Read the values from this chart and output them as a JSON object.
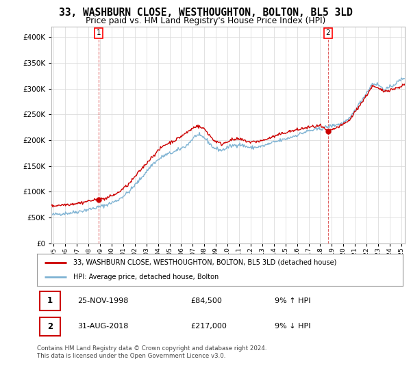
{
  "title": "33, WASHBURN CLOSE, WESTHOUGHTON, BOLTON, BL5 3LD",
  "subtitle": "Price paid vs. HM Land Registry's House Price Index (HPI)",
  "title_fontsize": 10.5,
  "subtitle_fontsize": 9,
  "ytick_values": [
    0,
    50000,
    100000,
    150000,
    200000,
    250000,
    300000,
    350000,
    400000
  ],
  "ylim": [
    0,
    420000
  ],
  "xlim_start": 1994.8,
  "xlim_end": 2025.3,
  "hpi_color": "#7fb3d3",
  "price_color": "#cc0000",
  "marker1_x": 1998.9,
  "marker1_y": 84500,
  "marker2_x": 2018.67,
  "marker2_y": 217000,
  "legend_line1": "33, WASHBURN CLOSE, WESTHOUGHTON, BOLTON, BL5 3LD (detached house)",
  "legend_line2": "HPI: Average price, detached house, Bolton",
  "table_row1_num": "1",
  "table_row1_date": "25-NOV-1998",
  "table_row1_price": "£84,500",
  "table_row1_hpi": "9% ↑ HPI",
  "table_row2_num": "2",
  "table_row2_date": "31-AUG-2018",
  "table_row2_price": "£217,000",
  "table_row2_hpi": "9% ↓ HPI",
  "footer": "Contains HM Land Registry data © Crown copyright and database right 2024.\nThis data is licensed under the Open Government Licence v3.0.",
  "background_color": "#ffffff",
  "grid_color": "#dddddd"
}
